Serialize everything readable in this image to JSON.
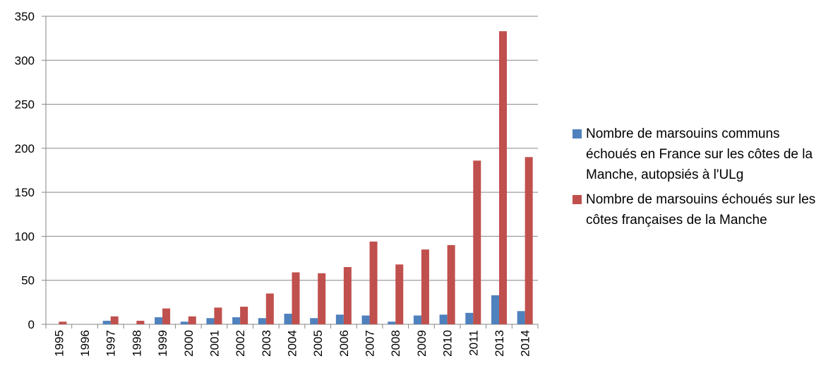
{
  "chart_data": {
    "type": "bar",
    "categories": [
      "1995",
      "1996",
      "1997",
      "1998",
      "1999",
      "2000",
      "2001",
      "2002",
      "2003",
      "2004",
      "2005",
      "2006",
      "2007",
      "2008",
      "2009",
      "2010",
      "2011",
      "2013",
      "2014"
    ],
    "series": [
      {
        "name": "Nombre de marsouins communs échoués en France sur les côtes de la Manche, autopsiés à l'ULg",
        "color": "#4f81bd",
        "values": [
          0,
          0,
          4,
          0,
          8,
          3,
          7,
          8,
          7,
          12,
          7,
          11,
          10,
          3,
          10,
          11,
          13,
          33,
          15
        ]
      },
      {
        "name": "Nombre de marsouins échoués sur les côtes françaises de la Manche",
        "color": "#c0504d",
        "values": [
          3,
          0,
          9,
          4,
          18,
          9,
          19,
          20,
          35,
          59,
          58,
          65,
          94,
          68,
          85,
          90,
          186,
          333,
          190
        ]
      }
    ],
    "ylim": [
      0,
      350
    ],
    "yticks": [
      0,
      50,
      100,
      150,
      200,
      250,
      300,
      350
    ],
    "grid": true,
    "legend": "right"
  }
}
